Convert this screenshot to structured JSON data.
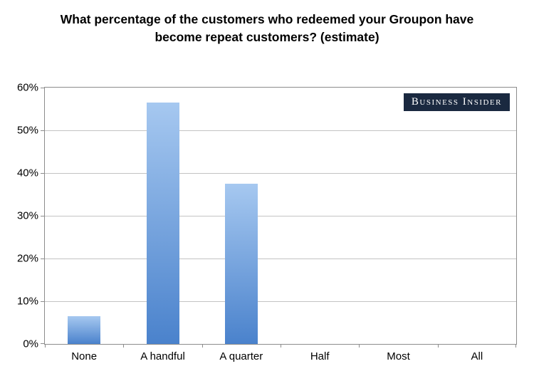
{
  "badge": {
    "text": "Business Insider",
    "bg_color": "#1a2940",
    "text_color": "#ffffff"
  },
  "chart_data": {
    "type": "bar",
    "title": "What percentage of the customers who redeemed your Groupon have become repeat customers? (estimate)",
    "categories": [
      "None",
      "A handful",
      "A quarter",
      "Half",
      "Most",
      "All"
    ],
    "values": [
      6.5,
      56.5,
      37.5,
      0,
      0,
      0
    ],
    "xlabel": "",
    "ylabel": "",
    "ylim": [
      0,
      60
    ],
    "ytick_step": 10,
    "ytick_labels": [
      "0%",
      "10%",
      "20%",
      "30%",
      "40%",
      "50%",
      "60%"
    ],
    "grid": true,
    "legend": "none",
    "bar_gradient_top": "#a6c8f0",
    "bar_gradient_bottom": "#4a82cc",
    "gridline_color": "#c3c3c3",
    "axis_color": "#8c8c8c"
  }
}
